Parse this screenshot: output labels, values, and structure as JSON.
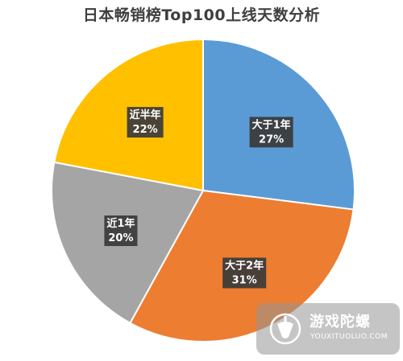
{
  "chart_data": {
    "type": "pie",
    "title": "日本畅销榜Top100上线天数分析",
    "slices": [
      {
        "label": "大于1年",
        "value": 27,
        "value_label": "27%",
        "color": "#5B9BD5"
      },
      {
        "label": "大于2年",
        "value": 31,
        "value_label": "31%",
        "color": "#ED7D31"
      },
      {
        "label": "近1年",
        "value": 20,
        "value_label": "20%",
        "color": "#A5A5A5"
      },
      {
        "label": "近半年",
        "value": 22,
        "value_label": "22%",
        "color": "#FFC000"
      }
    ],
    "start_angle": "12 o'clock",
    "direction": "clockwise",
    "legend": "none"
  },
  "watermark": {
    "name": "游戏陀螺",
    "domain": "YOUXITUOLUO.COM"
  }
}
